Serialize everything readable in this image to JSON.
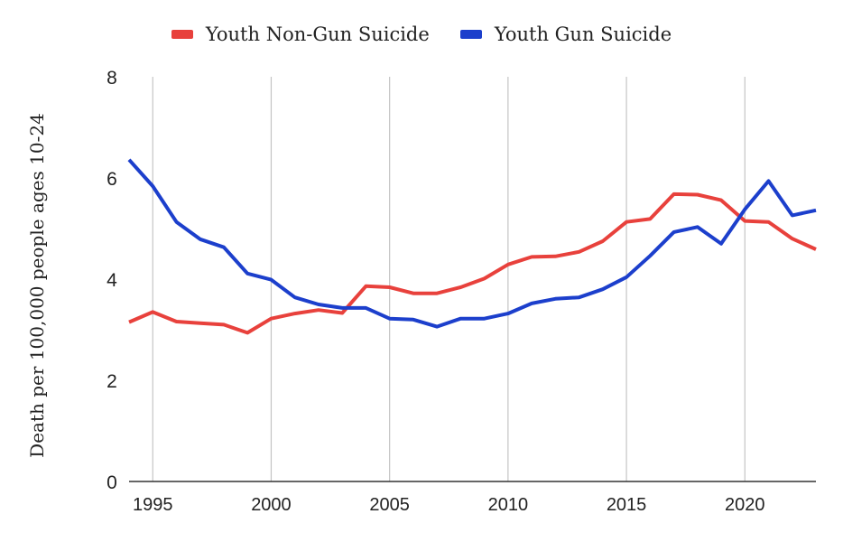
{
  "chart_data": {
    "type": "line",
    "ylabel": "Death per 100,000 people ages 10-24",
    "xlabel": "",
    "xlim": [
      1994,
      2023
    ],
    "ylim": [
      0,
      8
    ],
    "xticks": [
      1995,
      2000,
      2005,
      2010,
      2015,
      2020
    ],
    "yticks": [
      0,
      2,
      4,
      6,
      8
    ],
    "grid": "vertical",
    "legend_position": "top",
    "x": [
      1994,
      1995,
      1996,
      1997,
      1998,
      1999,
      2000,
      2001,
      2002,
      2003,
      2004,
      2005,
      2006,
      2007,
      2008,
      2009,
      2010,
      2011,
      2012,
      2013,
      2014,
      2015,
      2016,
      2017,
      2018,
      2019,
      2020,
      2021,
      2022,
      2023
    ],
    "series": [
      {
        "name": "Youth Non-Gun Suicide",
        "color": "#e8413c",
        "values": [
          3.15,
          3.35,
          3.16,
          3.13,
          3.1,
          2.94,
          3.22,
          3.32,
          3.39,
          3.33,
          3.86,
          3.84,
          3.72,
          3.72,
          3.84,
          4.01,
          4.29,
          4.44,
          4.45,
          4.54,
          4.75,
          5.13,
          5.19,
          5.68,
          5.67,
          5.56,
          5.15,
          5.13,
          4.8,
          4.59
        ]
      },
      {
        "name": "Youth Gun Suicide",
        "color": "#1c3fcc",
        "values": [
          6.36,
          5.84,
          5.13,
          4.79,
          4.63,
          4.11,
          3.99,
          3.64,
          3.5,
          3.43,
          3.43,
          3.22,
          3.2,
          3.06,
          3.22,
          3.22,
          3.32,
          3.52,
          3.61,
          3.64,
          3.8,
          4.04,
          4.46,
          4.93,
          5.03,
          4.7,
          5.38,
          5.94,
          5.26,
          5.36
        ]
      }
    ]
  }
}
